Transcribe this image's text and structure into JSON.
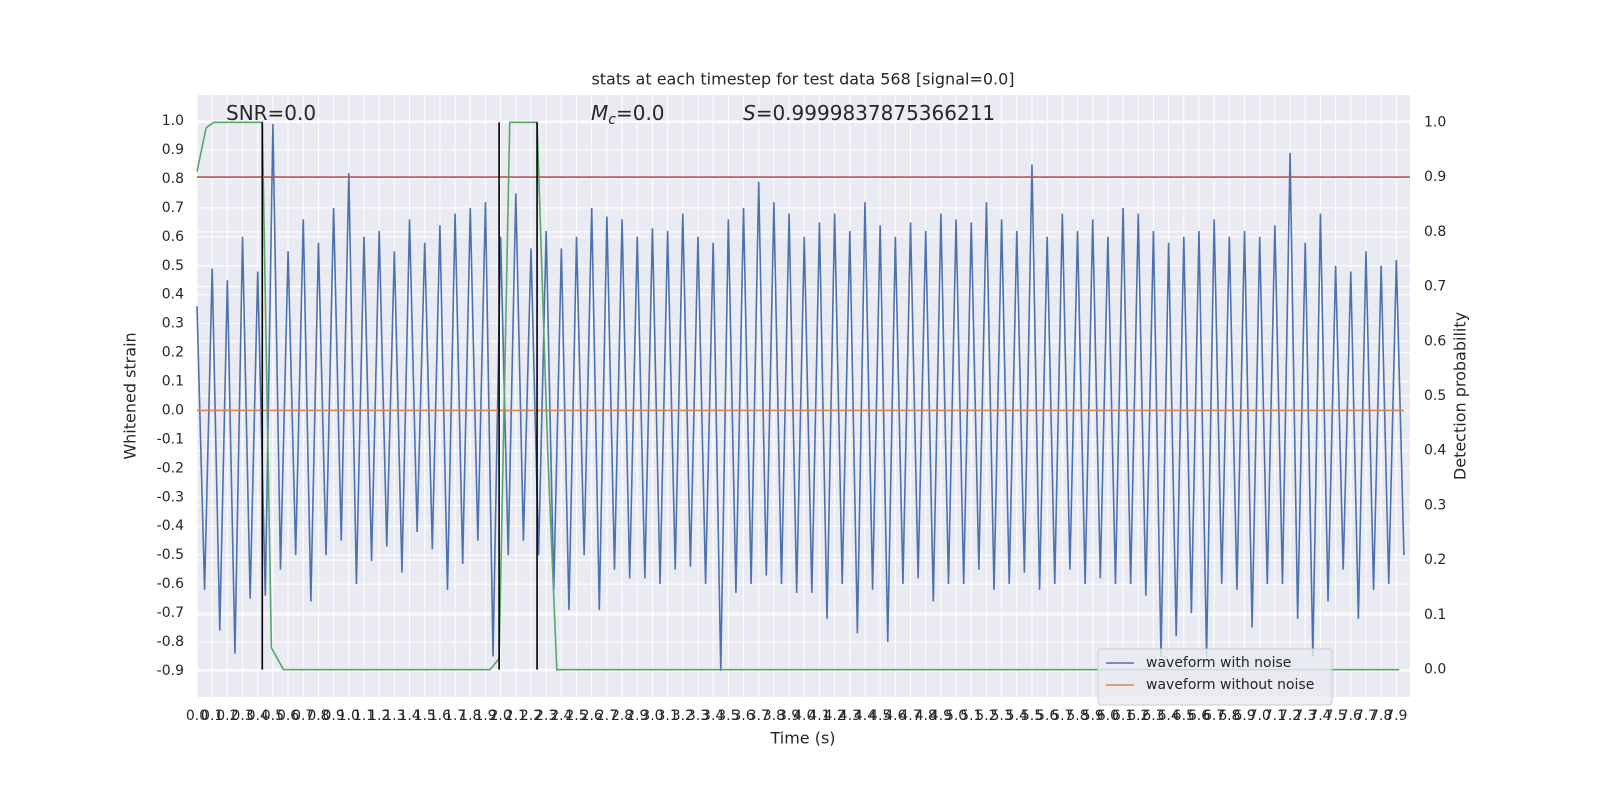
{
  "chart_data": {
    "type": "line",
    "title": "stats at each timestep for test data 568 [signal=0.0]",
    "xlabel": "Time (s)",
    "ylabel": "Whitened strain",
    "y2label": "Detection probability",
    "annotations": [
      [
        "SNR=0.0"
      ],
      [
        "M",
        "c",
        "=0.0"
      ],
      [
        "S",
        "=0.9999837875366211"
      ]
    ],
    "xlim": [
      0,
      7.99
    ],
    "ylim": [
      -0.99,
      1.09
    ],
    "y2lim": [
      -0.05,
      1.05
    ],
    "grid": true,
    "legend": "lower right",
    "xticks": [
      {
        "value": 0,
        "label": "0.0"
      },
      0.1,
      0.2,
      0.3,
      0.4,
      0.5,
      0.6,
      0.7,
      0.8,
      0.9,
      {
        "value": 1,
        "label": "1.0"
      },
      1.1,
      1.2,
      1.3,
      1.4,
      1.5,
      1.6,
      1.7,
      1.8,
      1.9,
      {
        "value": 2,
        "label": "2.0"
      },
      2.1,
      2.2,
      2.3,
      2.4,
      2.5,
      2.6,
      2.7,
      2.8,
      2.9,
      {
        "value": 3,
        "label": "3.0"
      },
      3.1,
      3.2,
      3.3,
      3.4,
      3.5,
      3.6,
      3.7,
      3.8,
      3.9,
      {
        "value": 4,
        "label": "4.0"
      },
      4.1,
      4.2,
      4.3,
      4.4,
      4.5,
      4.6,
      4.7,
      4.8,
      4.9,
      {
        "value": 5,
        "label": "5.0"
      },
      5.1,
      5.2,
      5.3,
      5.4,
      5.5,
      5.6,
      5.7,
      5.8,
      5.9,
      {
        "value": 6,
        "label": "6.0"
      },
      6.1,
      6.2,
      6.3,
      6.4,
      6.5,
      6.6,
      6.7,
      6.8,
      6.9,
      {
        "value": 7,
        "label": "7.0"
      },
      7.1,
      7.2,
      7.3,
      7.4,
      7.5,
      7.6,
      7.7,
      7.8,
      7.9
    ],
    "yticks": [
      -0.9,
      -0.8,
      -0.7,
      -0.6,
      -0.5,
      -0.4,
      -0.3,
      -0.2,
      -0.1,
      {
        "value": 0,
        "label": "0.0"
      },
      0.1,
      0.2,
      0.3,
      0.4,
      0.5,
      0.6,
      0.7,
      0.8,
      0.9,
      {
        "value": 1,
        "label": "1.0"
      }
    ],
    "y2ticks": [
      {
        "value": 0,
        "label": "0.0"
      },
      0.1,
      0.2,
      0.3,
      0.4,
      0.5,
      0.6,
      0.7,
      0.8,
      0.9,
      {
        "value": 1,
        "label": "1.0"
      }
    ],
    "series": [
      {
        "name": "waveform with noise",
        "color": "#4c72b0",
        "x": [
          0,
          0.05,
          0.1,
          0.15,
          0.2,
          0.25,
          0.3,
          0.35,
          0.4,
          0.45,
          0.5,
          0.55,
          0.6,
          0.65,
          0.7,
          0.75,
          0.8,
          0.85,
          0.9,
          0.95,
          1,
          1.05,
          1.1,
          1.15,
          1.2,
          1.25,
          1.3,
          1.35,
          1.4,
          1.45,
          1.5,
          1.55,
          1.6,
          1.65,
          1.7,
          1.75,
          1.8,
          1.85,
          1.9,
          1.95,
          2,
          2.05,
          2.1,
          2.15,
          2.2,
          2.25,
          2.3,
          2.35,
          2.4,
          2.45,
          2.5,
          2.55,
          2.6,
          2.65,
          2.7,
          2.75,
          2.8,
          2.85,
          2.9,
          2.95,
          3,
          3.05,
          3.1,
          3.15,
          3.2,
          3.25,
          3.3,
          3.35,
          3.4,
          3.45,
          3.5,
          3.55,
          3.6,
          3.65,
          3.7,
          3.75,
          3.8,
          3.85,
          3.9,
          3.95,
          4,
          4.05,
          4.1,
          4.15,
          4.2,
          4.25,
          4.3,
          4.35,
          4.4,
          4.45,
          4.5,
          4.55,
          4.6,
          4.65,
          4.7,
          4.75,
          4.8,
          4.85,
          4.9,
          4.95,
          5,
          5.05,
          5.1,
          5.15,
          5.2,
          5.25,
          5.3,
          5.35,
          5.4,
          5.45,
          5.5,
          5.55,
          5.6,
          5.65,
          5.7,
          5.75,
          5.8,
          5.85,
          5.9,
          5.95,
          6,
          6.05,
          6.1,
          6.15,
          6.2,
          6.25,
          6.3,
          6.35,
          6.4,
          6.45,
          6.5,
          6.55,
          6.6,
          6.65,
          6.7,
          6.75,
          6.8,
          6.85,
          6.9,
          6.95,
          7,
          7.05,
          7.1,
          7.15,
          7.2,
          7.25,
          7.3,
          7.35,
          7.4,
          7.45,
          7.5,
          7.55,
          7.6,
          7.65,
          7.7,
          7.75,
          7.8,
          7.85,
          7.9,
          7.95
        ],
        "values": [
          0.36,
          -0.62,
          0.49,
          -0.76,
          0.45,
          -0.84,
          0.6,
          -0.65,
          0.48,
          -0.64,
          0.99,
          -0.55,
          0.55,
          -0.5,
          0.66,
          -0.66,
          0.58,
          -0.5,
          0.7,
          -0.45,
          0.82,
          -0.6,
          0.6,
          -0.52,
          0.62,
          -0.47,
          0.55,
          -0.56,
          0.66,
          -0.42,
          0.58,
          -0.48,
          0.64,
          -0.62,
          0.68,
          -0.53,
          0.7,
          -0.45,
          0.72,
          -0.85,
          0.6,
          -0.5,
          0.75,
          -0.45,
          0.56,
          -0.5,
          0.62,
          -0.62,
          0.56,
          -0.69,
          0.6,
          -0.5,
          0.7,
          -0.69,
          0.67,
          -0.55,
          0.66,
          -0.58,
          0.6,
          -0.58,
          0.63,
          -0.6,
          0.62,
          -0.55,
          0.68,
          -0.54,
          0.6,
          -0.6,
          0.58,
          -0.9,
          0.66,
          -0.63,
          0.7,
          -0.6,
          0.79,
          -0.57,
          0.72,
          -0.6,
          0.68,
          -0.63,
          0.6,
          -0.63,
          0.65,
          -0.72,
          0.68,
          -0.6,
          0.62,
          -0.77,
          0.72,
          -0.62,
          0.64,
          -0.8,
          0.6,
          -0.6,
          0.65,
          -0.58,
          0.62,
          -0.66,
          0.68,
          -0.6,
          0.66,
          -0.6,
          0.65,
          -0.55,
          0.72,
          -0.62,
          0.66,
          -0.6,
          0.62,
          -0.56,
          0.85,
          -0.62,
          0.6,
          -0.6,
          0.68,
          -0.55,
          0.62,
          -0.6,
          0.66,
          -0.58,
          0.6,
          -0.6,
          0.7,
          -0.6,
          0.68,
          -0.64,
          0.62,
          -0.85,
          0.58,
          -0.78,
          0.6,
          -0.7,
          0.62,
          -0.85,
          0.66,
          -0.6,
          0.6,
          -0.62,
          0.62,
          -0.75,
          0.6,
          -0.6,
          0.64,
          -0.6,
          0.89,
          -0.72,
          0.58,
          -0.85,
          0.68,
          -0.66,
          0.5,
          -0.55,
          0.48,
          -0.72,
          0.55,
          -0.62,
          0.5,
          -0.6,
          0.52,
          -0.5
        ]
      },
      {
        "name": "waveform without noise",
        "color": "#dd8452",
        "x": [
          0,
          7.95
        ],
        "values": [
          0,
          0
        ]
      },
      {
        "color": "#c44e52",
        "axis": "y2",
        "x": [
          0,
          7.99
        ],
        "values": [
          0.9,
          0.9
        ]
      },
      {
        "color": "#55a868",
        "axis": "y2",
        "x": [
          0,
          0.06,
          0.11,
          0.43,
          0.49,
          0.57,
          1.93,
          1.99,
          2.06,
          2.24,
          2.31,
          2.37,
          2.6,
          7.92
        ],
        "values": [
          0.91,
          0.99,
          1,
          1,
          0.04,
          0,
          0,
          0.02,
          1,
          1,
          0.4,
          0,
          0,
          0
        ]
      },
      {
        "color": "#000000",
        "axis": "y2",
        "x": [
          0.43,
          0.43
        ],
        "values": [
          0,
          1
        ]
      },
      {
        "color": "#000000",
        "axis": "y2",
        "x": [
          1.99,
          1.99
        ],
        "values": [
          0,
          1
        ]
      },
      {
        "color": "#000000",
        "axis": "y2",
        "x": [
          2.24,
          2.24
        ],
        "values": [
          0,
          1
        ]
      }
    ]
  }
}
